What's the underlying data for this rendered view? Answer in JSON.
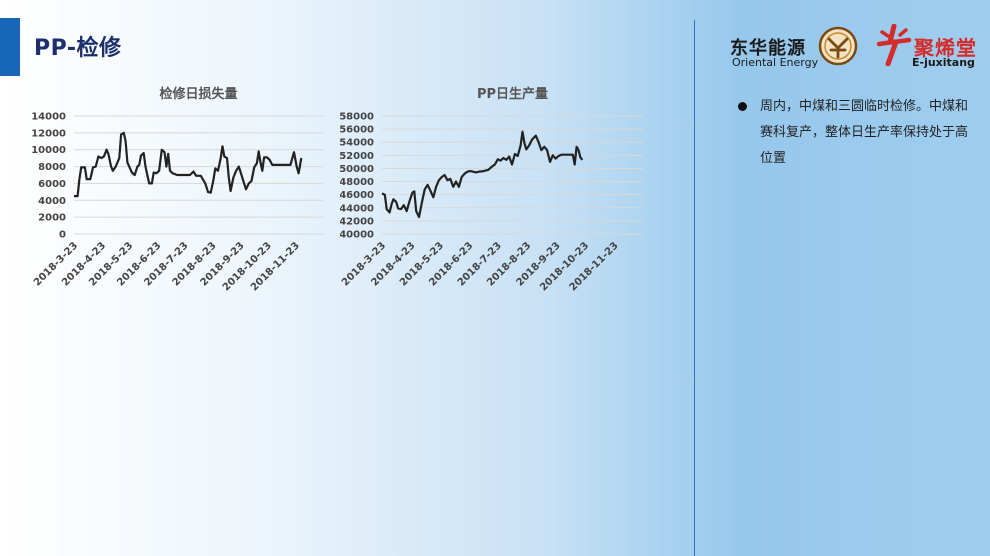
{
  "slide": {
    "title": "PP-检修"
  },
  "logos": {
    "oriental_energy_cn": "东华能源",
    "oriental_energy_en": "Oriental Energy",
    "ejuxitang_cn": "聚烯堂",
    "ejuxitang_en": "E-juxitang",
    "icons": [
      "oriental-energy-emblem-icon",
      "ejuxitang-logo-icon"
    ]
  },
  "bullets": [
    "周内，中煤和三圆临时检修。中煤和赛科复产，整体日生产率保持处于高位置"
  ],
  "colors": {
    "line": "#222222",
    "grid": "#d8d8d8",
    "accent": "#1766b8",
    "title": "#1a2f6b"
  },
  "chart_data": [
    {
      "type": "line",
      "title": "检修日损失量",
      "xlabel": "",
      "ylabel": "",
      "ylim": [
        0,
        14000
      ],
      "yticks": [
        0,
        2000,
        4000,
        6000,
        8000,
        10000,
        12000,
        14000
      ],
      "xlim": [
        "2018-3-23",
        "2018-12-23"
      ],
      "xticks": [
        "2018-3-23",
        "2018-4-23",
        "2018-5-23",
        "2018-6-23",
        "2018-7-23",
        "2018-8-23",
        "2018-9-23",
        "2018-10-23",
        "2018-11-23"
      ],
      "grid": true,
      "legend": "none",
      "series": [
        {
          "points": [
            [
              "2018-3-23",
              4500
            ],
            [
              "2018-3-27",
              4500
            ],
            [
              "2018-3-29",
              6500
            ],
            [
              "2018-3-31",
              7900
            ],
            [
              "2018-4-4",
              7900
            ],
            [
              "2018-4-6",
              6500
            ],
            [
              "2018-4-10",
              6500
            ],
            [
              "2018-4-13",
              7900
            ],
            [
              "2018-4-16",
              8000
            ],
            [
              "2018-4-19",
              9200
            ],
            [
              "2018-4-22",
              9000
            ],
            [
              "2018-4-25",
              9200
            ],
            [
              "2018-4-28",
              10000
            ],
            [
              "2018-4-30",
              9500
            ],
            [
              "2018-5-3",
              8000
            ],
            [
              "2018-5-5",
              7500
            ],
            [
              "2018-5-8",
              8000
            ],
            [
              "2018-5-12",
              9000
            ],
            [
              "2018-5-14",
              11800
            ],
            [
              "2018-5-17",
              12000
            ],
            [
              "2018-5-19",
              11000
            ],
            [
              "2018-5-21",
              8500
            ],
            [
              "2018-5-23",
              8000
            ],
            [
              "2018-5-26",
              7300
            ],
            [
              "2018-5-29",
              7000
            ],
            [
              "2018-6-1",
              8000
            ],
            [
              "2018-6-3",
              8200
            ],
            [
              "2018-6-5",
              9300
            ],
            [
              "2018-6-8",
              9600
            ],
            [
              "2018-6-10",
              8000
            ],
            [
              "2018-6-12",
              7000
            ],
            [
              "2018-6-14",
              6000
            ],
            [
              "2018-6-17",
              6000
            ],
            [
              "2018-6-19",
              7300
            ],
            [
              "2018-6-22",
              7200
            ],
            [
              "2018-6-25",
              7500
            ],
            [
              "2018-6-28",
              10000
            ],
            [
              "2018-7-1",
              9700
            ],
            [
              "2018-7-3",
              8000
            ],
            [
              "2018-7-5",
              9500
            ],
            [
              "2018-7-7",
              7500
            ],
            [
              "2018-7-10",
              7200
            ],
            [
              "2018-7-15",
              7000
            ],
            [
              "2018-7-22",
              7000
            ],
            [
              "2018-7-29",
              7000
            ],
            [
              "2018-8-2",
              7400
            ],
            [
              "2018-8-5",
              6900
            ],
            [
              "2018-8-10",
              6900
            ],
            [
              "2018-8-15",
              6000
            ],
            [
              "2018-8-18",
              5000
            ],
            [
              "2018-8-21",
              4900
            ],
            [
              "2018-8-24",
              6400
            ],
            [
              "2018-8-26",
              7800
            ],
            [
              "2018-8-29",
              7500
            ],
            [
              "2018-9-1",
              9000
            ],
            [
              "2018-9-3",
              10400
            ],
            [
              "2018-9-5",
              9200
            ],
            [
              "2018-9-8",
              9000
            ],
            [
              "2018-9-10",
              6700
            ],
            [
              "2018-9-12",
              5100
            ],
            [
              "2018-9-15",
              6700
            ],
            [
              "2018-9-18",
              7500
            ],
            [
              "2018-9-21",
              8000
            ],
            [
              "2018-9-24",
              7000
            ],
            [
              "2018-9-26",
              6300
            ],
            [
              "2018-9-29",
              5300
            ],
            [
              "2018-10-2",
              6000
            ],
            [
              "2018-10-5",
              6300
            ],
            [
              "2018-10-8",
              7900
            ],
            [
              "2018-10-11",
              8400
            ],
            [
              "2018-10-13",
              9800
            ],
            [
              "2018-10-15",
              8500
            ],
            [
              "2018-10-17",
              7500
            ],
            [
              "2018-10-19",
              9100
            ],
            [
              "2018-10-22",
              9100
            ],
            [
              "2018-10-25",
              8800
            ],
            [
              "2018-10-28",
              8200
            ],
            [
              "2018-11-4",
              8200
            ],
            [
              "2018-11-10",
              8200
            ],
            [
              "2018-11-17",
              8200
            ],
            [
              "2018-11-21",
              9700
            ],
            [
              "2018-11-24",
              8000
            ],
            [
              "2018-11-26",
              7200
            ],
            [
              "2018-11-29",
              9000
            ]
          ]
        }
      ]
    },
    {
      "type": "line",
      "title": "PP日生产量",
      "xlabel": "",
      "ylabel": "",
      "ylim": [
        40000,
        58000
      ],
      "yticks": [
        40000,
        42000,
        44000,
        46000,
        48000,
        50000,
        52000,
        54000,
        56000,
        58000
      ],
      "xlim": [
        "2018-3-23",
        "2018-12-23"
      ],
      "xticks": [
        "2018-3-23",
        "2018-4-23",
        "2018-5-23",
        "2018-6-23",
        "2018-7-23",
        "2018-8-23",
        "2018-9-23",
        "2018-10-23",
        "2018-11-23"
      ],
      "grid": true,
      "legend": "none",
      "series": [
        {
          "points": [
            [
              "2018-3-23",
              46200
            ],
            [
              "2018-3-26",
              46000
            ],
            [
              "2018-3-28",
              43800
            ],
            [
              "2018-3-31",
              43300
            ],
            [
              "2018-4-2",
              44500
            ],
            [
              "2018-4-4",
              45300
            ],
            [
              "2018-4-7",
              44900
            ],
            [
              "2018-4-9",
              43900
            ],
            [
              "2018-4-12",
              43800
            ],
            [
              "2018-4-15",
              44400
            ],
            [
              "2018-4-18",
              43500
            ],
            [
              "2018-4-21",
              45000
            ],
            [
              "2018-4-24",
              46300
            ],
            [
              "2018-4-26",
              46500
            ],
            [
              "2018-4-28",
              43500
            ],
            [
              "2018-5-1",
              42600
            ],
            [
              "2018-5-4",
              44800
            ],
            [
              "2018-5-7",
              46800
            ],
            [
              "2018-5-10",
              47500
            ],
            [
              "2018-5-13",
              46600
            ],
            [
              "2018-5-16",
              45600
            ],
            [
              "2018-5-19",
              47200
            ],
            [
              "2018-5-22",
              48200
            ],
            [
              "2018-5-25",
              48700
            ],
            [
              "2018-5-28",
              49000
            ],
            [
              "2018-5-31",
              48200
            ],
            [
              "2018-6-3",
              48400
            ],
            [
              "2018-6-6",
              47200
            ],
            [
              "2018-6-9",
              48000
            ],
            [
              "2018-6-12",
              47200
            ],
            [
              "2018-6-15",
              48700
            ],
            [
              "2018-6-18",
              49200
            ],
            [
              "2018-6-21",
              49500
            ],
            [
              "2018-6-24",
              49600
            ],
            [
              "2018-6-27",
              49500
            ],
            [
              "2018-6-30",
              49400
            ],
            [
              "2018-7-3",
              49500
            ],
            [
              "2018-7-8",
              49600
            ],
            [
              "2018-7-13",
              49800
            ],
            [
              "2018-7-17",
              50300
            ],
            [
              "2018-7-20",
              50600
            ],
            [
              "2018-7-23",
              51400
            ],
            [
              "2018-7-26",
              51200
            ],
            [
              "2018-7-29",
              51600
            ],
            [
              "2018-8-1",
              51300
            ],
            [
              "2018-8-4",
              51800
            ],
            [
              "2018-8-7",
              50600
            ],
            [
              "2018-8-10",
              52200
            ],
            [
              "2018-8-13",
              51900
            ],
            [
              "2018-8-16",
              53500
            ],
            [
              "2018-8-18",
              55600
            ],
            [
              "2018-8-20",
              53900
            ],
            [
              "2018-8-22",
              52900
            ],
            [
              "2018-8-25",
              53500
            ],
            [
              "2018-8-28",
              54400
            ],
            [
              "2018-9-1",
              55000
            ],
            [
              "2018-9-4",
              54000
            ],
            [
              "2018-9-7",
              52800
            ],
            [
              "2018-9-10",
              53300
            ],
            [
              "2018-9-13",
              52800
            ],
            [
              "2018-9-16",
              51000
            ],
            [
              "2018-9-19",
              52000
            ],
            [
              "2018-9-22",
              51500
            ],
            [
              "2018-9-25",
              51900
            ],
            [
              "2018-9-28",
              52100
            ],
            [
              "2018-10-1",
              52100
            ],
            [
              "2018-10-6",
              52100
            ],
            [
              "2018-10-10",
              52100
            ],
            [
              "2018-10-12",
              50600
            ],
            [
              "2018-10-14",
              53300
            ],
            [
              "2018-10-16",
              52800
            ],
            [
              "2018-10-18",
              51700
            ],
            [
              "2018-10-20",
              51300
            ]
          ]
        }
      ]
    }
  ]
}
